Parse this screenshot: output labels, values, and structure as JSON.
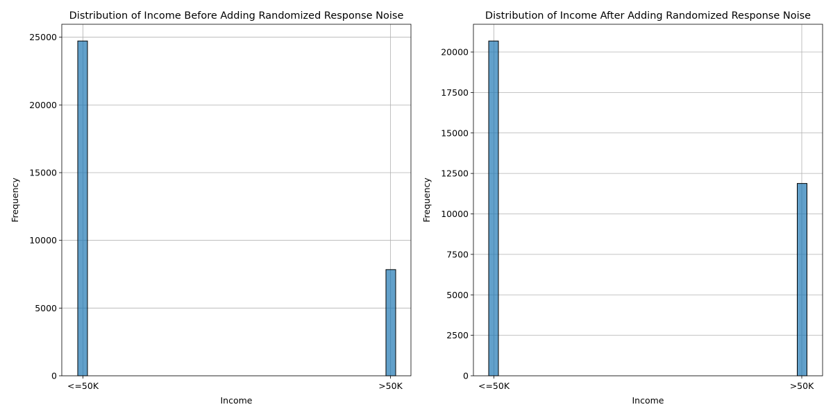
{
  "chart_data": [
    {
      "type": "bar",
      "title": "Distribution of Income Before Adding Randomized Response Noise",
      "xlabel": "Income",
      "ylabel": "Frequency",
      "categories": [
        "<=50K",
        ">50K"
      ],
      "values": [
        24720,
        7841
      ],
      "ylim": [
        0,
        25956
      ],
      "yticks": [
        0,
        5000,
        10000,
        15000,
        20000,
        25000
      ],
      "ytick_labels": [
        "0",
        "5000",
        "10000",
        "15000",
        "20000",
        "25000"
      ],
      "grid": true,
      "bar_color": "#1f77b4"
    },
    {
      "type": "bar",
      "title": "Distribution of Income After Adding Randomized Response Noise",
      "xlabel": "Income",
      "ylabel": "Frequency",
      "categories": [
        "<=50K",
        ">50K"
      ],
      "values": [
        20680,
        11880
      ],
      "ylim": [
        0,
        21714
      ],
      "yticks": [
        0,
        2500,
        5000,
        7500,
        10000,
        12500,
        15000,
        17500,
        20000
      ],
      "ytick_labels": [
        "0",
        "2500",
        "5000",
        "7500",
        "10000",
        "12500",
        "15000",
        "17500",
        "20000"
      ],
      "grid": true,
      "bar_color": "#1f77b4"
    }
  ]
}
